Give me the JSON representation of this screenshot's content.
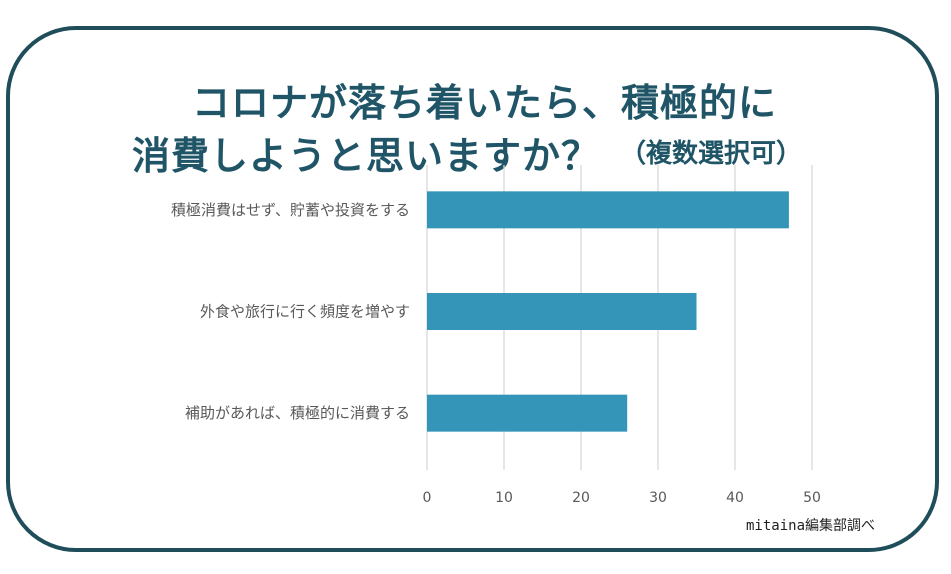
{
  "title_line1": "コロナが落ち着いたら、積極的に",
  "title_line2": "消費しようと思いますか？",
  "title_note": "（複数選択可）",
  "source": "mitaina編集部調べ",
  "colors": {
    "bar": "#3595b8",
    "frame": "#1f4e5a",
    "title": "#1f5566",
    "grid": "#d9d9d9"
  },
  "chart_data": {
    "type": "bar",
    "orientation": "horizontal",
    "categories": [
      "積極消費はせず、貯蓄や投資をする",
      "外食や旅行に行く頻度を増やす",
      "補助があれば、積極的に消費する"
    ],
    "values": [
      47,
      35,
      26
    ],
    "xlim": [
      0,
      50
    ],
    "xticks": [
      0,
      10,
      20,
      30,
      40,
      50
    ],
    "grid": true
  }
}
